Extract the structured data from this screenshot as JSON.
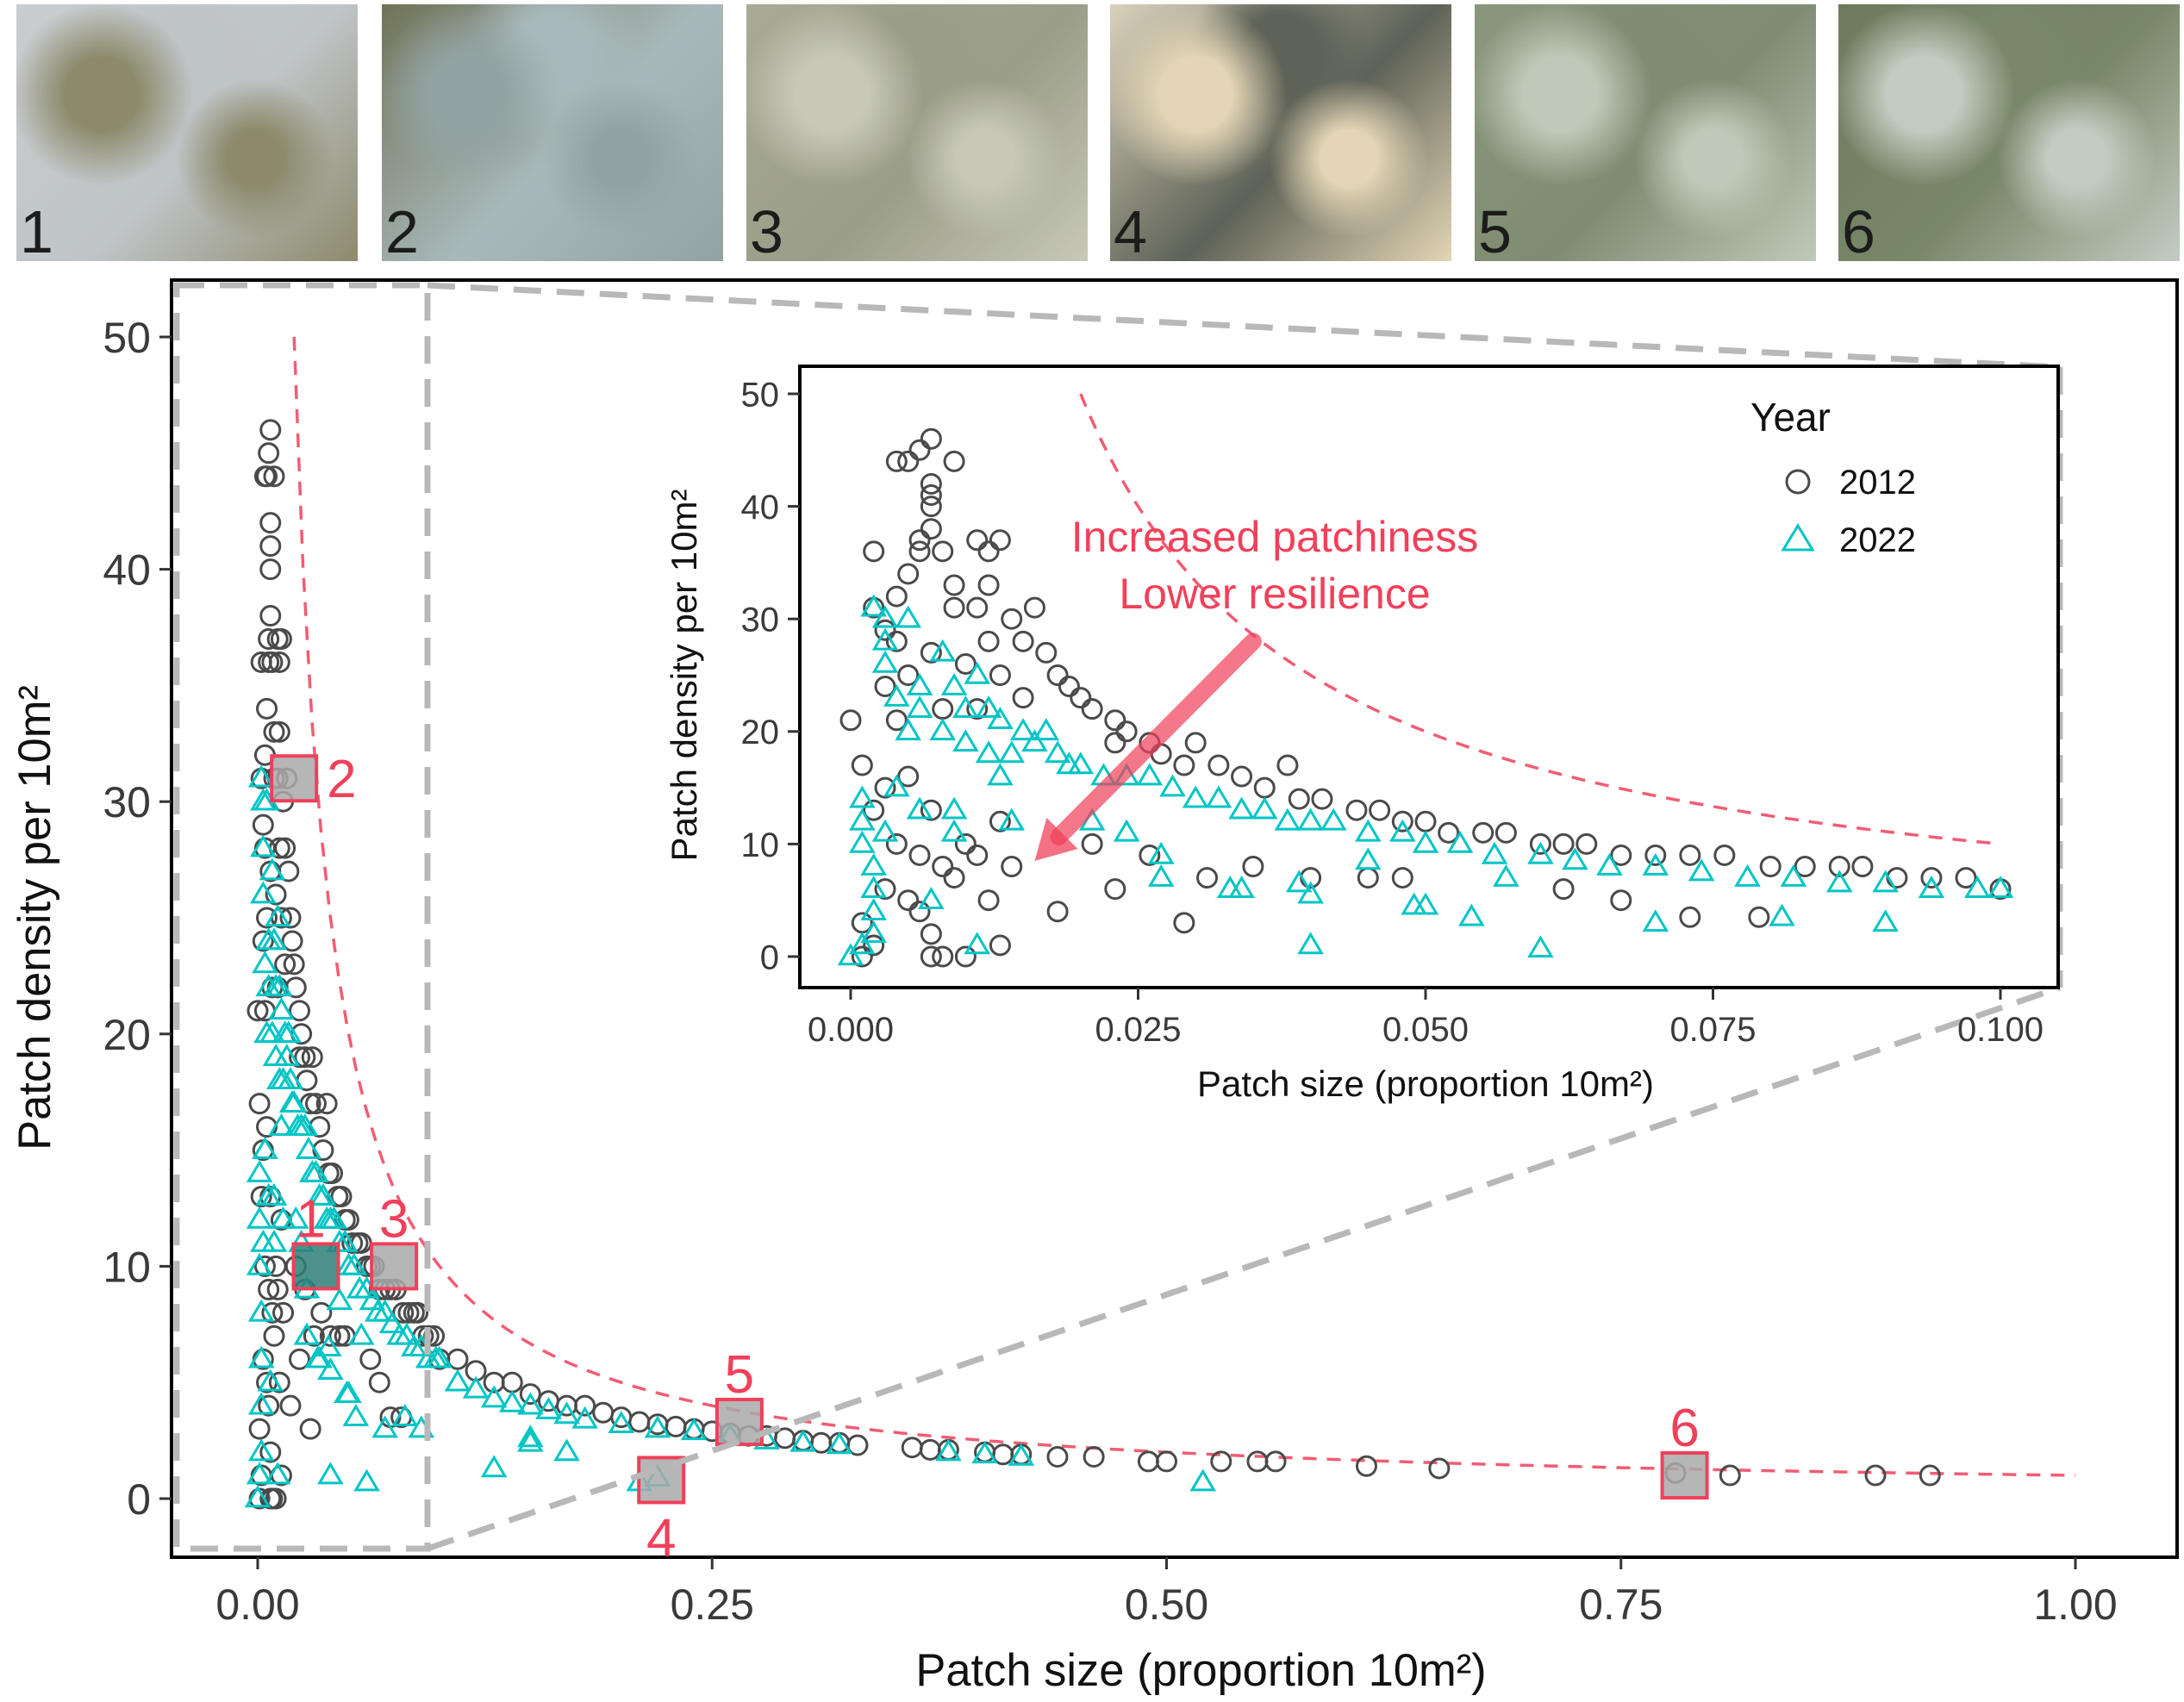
{
  "photos": [
    {
      "label": "1",
      "colors": [
        "#c9cdd0",
        "#8d8a6c",
        "#bfc4c6"
      ]
    },
    {
      "label": "2",
      "colors": [
        "#6f7357",
        "#93a3a3",
        "#a9b9bb"
      ]
    },
    {
      "label": "3",
      "colors": [
        "#a9ab94",
        "#c7c8b8",
        "#9a9d87"
      ]
    },
    {
      "label": "4",
      "colors": [
        "#d9d2bc",
        "#e3d5b5",
        "#5e6257"
      ]
    },
    {
      "label": "5",
      "colors": [
        "#89977c",
        "#bfc9b9",
        "#7f8c72"
      ]
    },
    {
      "label": "6",
      "colors": [
        "#6d7b5c",
        "#c3ccc2",
        "#79886a"
      ]
    }
  ],
  "colors": {
    "c2012": "#4a4a4a",
    "c2022": "#00c5c5",
    "accent": "#f0405a",
    "zoom_box": "#b8b8b8",
    "square_fill": "#a9a9a9",
    "square1_fill": "#2e7e78"
  },
  "chart_data": [
    {
      "id": "main",
      "type": "scatter",
      "xlabel": "Patch size (proportion 10m²)",
      "ylabel": "Patch density per 10m²",
      "xlim": [
        0,
        1.0
      ],
      "ylim": [
        0,
        50
      ],
      "xticks": [
        "0.00",
        "0.25",
        "0.50",
        "0.75",
        "1.00"
      ],
      "xtick_values": [
        0,
        0.25,
        0.5,
        0.75,
        1.0
      ],
      "yticks": [
        "0",
        "10",
        "20",
        "30",
        "40",
        "50"
      ],
      "ytick_values": [
        0,
        10,
        20,
        30,
        40,
        50
      ],
      "reference_curve": {
        "formula": "y = 1/x",
        "x_range": [
          0.02,
          1.0
        ],
        "style": "dashed"
      },
      "zoom_region": {
        "x": [
          0,
          0.1
        ],
        "y": [
          0,
          50
        ]
      },
      "highlighted_samples": [
        {
          "label": "1",
          "x": 0.032,
          "y": 10,
          "label_pos": "above"
        },
        {
          "label": "2",
          "x": 0.02,
          "y": 31,
          "label_pos": "right"
        },
        {
          "label": "3",
          "x": 0.075,
          "y": 10,
          "label_pos": "above"
        },
        {
          "label": "4",
          "x": 0.222,
          "y": 0.8,
          "label_pos": "below"
        },
        {
          "label": "5",
          "x": 0.265,
          "y": 3.3,
          "label_pos": "above"
        },
        {
          "label": "6",
          "x": 0.785,
          "y": 1.0,
          "label_pos": "above"
        }
      ]
    },
    {
      "id": "inset",
      "type": "scatter",
      "xlabel": "Patch size (proportion 10m²)",
      "ylabel": "Patch density per 10m²",
      "xlim": [
        0,
        0.1
      ],
      "ylim": [
        0,
        50
      ],
      "xticks": [
        "0.000",
        "0.025",
        "0.050",
        "0.075",
        "0.100"
      ],
      "xtick_values": [
        0,
        0.025,
        0.05,
        0.075,
        0.1
      ],
      "yticks": [
        "0",
        "10",
        "20",
        "30",
        "40",
        "50"
      ],
      "ytick_values": [
        0,
        10,
        20,
        30,
        40,
        50
      ],
      "reference_curve": {
        "formula": "y = 1/x",
        "x_range": [
          0.02,
          0.1
        ],
        "style": "dashed"
      },
      "legend": {
        "title": "Year",
        "position": "top-right",
        "entries": [
          {
            "label": "2012",
            "marker": "circle"
          },
          {
            "label": "2022",
            "marker": "triangle"
          }
        ]
      },
      "annotation": {
        "lines": [
          "Increased patchiness",
          "Lower resilience"
        ],
        "arrow_from": [
          0.035,
          28
        ],
        "arrow_to": [
          0.016,
          8.5
        ]
      }
    }
  ],
  "series": [
    {
      "name": "2012",
      "marker": "circle",
      "points": [
        [
          0.007,
          46
        ],
        [
          0.006,
          45
        ],
        [
          0.005,
          44
        ],
        [
          0.009,
          44
        ],
        [
          0.004,
          44
        ],
        [
          0.007,
          42
        ],
        [
          0.007,
          41
        ],
        [
          0.007,
          40
        ],
        [
          0.007,
          38
        ],
        [
          0.002,
          36
        ],
        [
          0.006,
          37
        ],
        [
          0.006,
          36
        ],
        [
          0.011,
          37
        ],
        [
          0.012,
          36
        ],
        [
          0.013,
          37
        ],
        [
          0.008,
          36
        ],
        [
          0.005,
          34
        ],
        [
          0.009,
          33
        ],
        [
          0.004,
          32
        ],
        [
          0.012,
          33
        ],
        [
          0.009,
          31
        ],
        [
          0.002,
          31
        ],
        [
          0.003,
          29
        ],
        [
          0.014,
          30
        ],
        [
          0.011,
          31
        ],
        [
          0.016,
          31
        ],
        [
          0.004,
          28
        ],
        [
          0.007,
          27
        ],
        [
          0.012,
          28
        ],
        [
          0.015,
          28
        ],
        [
          0.017,
          27
        ],
        [
          0.003,
          24
        ],
        [
          0.005,
          25
        ],
        [
          0.01,
          26
        ],
        [
          0.013,
          25
        ],
        [
          0.018,
          25
        ],
        [
          0.019,
          24
        ],
        [
          0.02,
          23
        ],
        [
          0.021,
          22
        ],
        [
          0.0,
          21
        ],
        [
          0.004,
          21
        ],
        [
          0.008,
          22
        ],
        [
          0.011,
          22
        ],
        [
          0.015,
          23
        ],
        [
          0.023,
          21
        ],
        [
          0.024,
          20
        ],
        [
          0.023,
          19
        ],
        [
          0.026,
          19
        ],
        [
          0.03,
          19
        ],
        [
          0.027,
          18
        ],
        [
          0.029,
          17
        ],
        [
          0.032,
          17
        ],
        [
          0.034,
          16
        ],
        [
          0.038,
          17
        ],
        [
          0.036,
          15
        ],
        [
          0.039,
          14
        ],
        [
          0.041,
          14
        ],
        [
          0.044,
          13
        ],
        [
          0.046,
          13
        ],
        [
          0.048,
          12
        ],
        [
          0.05,
          12
        ],
        [
          0.052,
          11
        ],
        [
          0.055,
          11
        ],
        [
          0.057,
          11
        ],
        [
          0.06,
          10
        ],
        [
          0.062,
          10
        ],
        [
          0.064,
          10
        ],
        [
          0.067,
          9
        ],
        [
          0.07,
          9
        ],
        [
          0.073,
          9
        ],
        [
          0.076,
          9
        ],
        [
          0.08,
          8
        ],
        [
          0.083,
          8
        ],
        [
          0.086,
          8
        ],
        [
          0.088,
          8
        ],
        [
          0.091,
          7
        ],
        [
          0.094,
          7
        ],
        [
          0.097,
          7
        ],
        [
          0.1,
          6
        ],
        [
          0.001,
          17
        ],
        [
          0.003,
          15
        ],
        [
          0.005,
          16
        ],
        [
          0.007,
          13
        ],
        [
          0.002,
          13
        ],
        [
          0.004,
          10
        ],
        [
          0.006,
          9
        ],
        [
          0.008,
          8
        ],
        [
          0.01,
          10
        ],
        [
          0.012,
          5
        ],
        [
          0.013,
          12
        ],
        [
          0.014,
          8
        ],
        [
          0.003,
          6
        ],
        [
          0.005,
          5
        ],
        [
          0.006,
          4
        ],
        [
          0.007,
          2
        ],
        [
          0.007,
          0
        ],
        [
          0.008,
          0
        ],
        [
          0.01,
          0
        ],
        [
          0.013,
          1
        ],
        [
          0.009,
          7
        ],
        [
          0.011,
          9
        ],
        [
          0.018,
          4
        ],
        [
          0.021,
          10
        ],
        [
          0.023,
          6
        ],
        [
          0.026,
          9
        ],
        [
          0.029,
          3
        ],
        [
          0.031,
          7
        ],
        [
          0.035,
          8
        ],
        [
          0.04,
          7
        ],
        [
          0.045,
          7
        ],
        [
          0.048,
          7
        ],
        [
          0.062,
          6
        ],
        [
          0.067,
          5
        ],
        [
          0.073,
          3.5
        ],
        [
          0.079,
          3.5
        ],
        [
          0.001,
          0
        ],
        [
          0.002,
          1
        ],
        [
          0.001,
          3
        ],
        [
          0.11,
          6
        ],
        [
          0.12,
          5.5
        ],
        [
          0.13,
          5
        ],
        [
          0.14,
          5
        ],
        [
          0.15,
          4.5
        ],
        [
          0.16,
          4.2
        ],
        [
          0.17,
          4
        ],
        [
          0.18,
          4
        ],
        [
          0.19,
          3.7
        ],
        [
          0.2,
          3.5
        ],
        [
          0.21,
          3.3
        ],
        [
          0.22,
          3.2
        ],
        [
          0.23,
          3.1
        ],
        [
          0.24,
          3
        ],
        [
          0.25,
          2.9
        ],
        [
          0.26,
          2.8
        ],
        [
          0.27,
          2.7
        ],
        [
          0.28,
          2.7
        ],
        [
          0.29,
          2.6
        ],
        [
          0.3,
          2.5
        ],
        [
          0.31,
          2.4
        ],
        [
          0.32,
          2.4
        ],
        [
          0.33,
          2.3
        ],
        [
          0.36,
          2.2
        ],
        [
          0.37,
          2.1
        ],
        [
          0.38,
          2.1
        ],
        [
          0.4,
          2
        ],
        [
          0.41,
          1.9
        ],
        [
          0.42,
          1.9
        ],
        [
          0.44,
          1.8
        ],
        [
          0.46,
          1.8
        ],
        [
          0.49,
          1.6
        ],
        [
          0.5,
          1.6
        ],
        [
          0.53,
          1.6
        ],
        [
          0.55,
          1.6
        ],
        [
          0.56,
          1.6
        ],
        [
          0.61,
          1.4
        ],
        [
          0.65,
          1.3
        ],
        [
          0.78,
          1.1
        ],
        [
          0.81,
          1.0
        ],
        [
          0.89,
          1.0
        ],
        [
          0.92,
          1.0
        ]
      ]
    },
    {
      "name": "2022",
      "marker": "triangle",
      "points": [
        [
          0.002,
          31
        ],
        [
          0.003,
          30
        ],
        [
          0.005,
          30
        ],
        [
          0.003,
          28
        ],
        [
          0.003,
          26
        ],
        [
          0.008,
          27
        ],
        [
          0.006,
          24
        ],
        [
          0.011,
          25
        ],
        [
          0.009,
          24
        ],
        [
          0.004,
          23
        ],
        [
          0.006,
          22
        ],
        [
          0.01,
          22
        ],
        [
          0.012,
          22
        ],
        [
          0.005,
          20
        ],
        [
          0.008,
          20
        ],
        [
          0.013,
          21
        ],
        [
          0.015,
          20
        ],
        [
          0.017,
          20
        ],
        [
          0.01,
          19
        ],
        [
          0.012,
          18
        ],
        [
          0.014,
          18
        ],
        [
          0.016,
          19
        ],
        [
          0.018,
          18
        ],
        [
          0.019,
          17
        ],
        [
          0.02,
          17
        ],
        [
          0.022,
          16
        ],
        [
          0.024,
          16
        ],
        [
          0.026,
          16
        ],
        [
          0.028,
          15
        ],
        [
          0.03,
          14
        ],
        [
          0.032,
          14
        ],
        [
          0.034,
          13
        ],
        [
          0.036,
          13
        ],
        [
          0.038,
          12
        ],
        [
          0.04,
          12
        ],
        [
          0.042,
          12
        ],
        [
          0.045,
          11
        ],
        [
          0.048,
          11
        ],
        [
          0.05,
          10
        ],
        [
          0.053,
          10
        ],
        [
          0.056,
          9
        ],
        [
          0.06,
          9
        ],
        [
          0.063,
          8.5
        ],
        [
          0.066,
          8
        ],
        [
          0.07,
          8
        ],
        [
          0.074,
          7.5
        ],
        [
          0.078,
          7
        ],
        [
          0.082,
          7
        ],
        [
          0.086,
          6.5
        ],
        [
          0.09,
          6.5
        ],
        [
          0.094,
          6
        ],
        [
          0.098,
          6
        ],
        [
          0.1,
          6
        ],
        [
          0.001,
          14
        ],
        [
          0.001,
          12
        ],
        [
          0.001,
          10
        ],
        [
          0.002,
          8
        ],
        [
          0.002,
          6
        ],
        [
          0.002,
          4
        ],
        [
          0.002,
          2
        ],
        [
          0.001,
          1
        ],
        [
          0.0,
          0
        ],
        [
          0.003,
          11
        ],
        [
          0.004,
          15
        ],
        [
          0.006,
          13
        ],
        [
          0.009,
          11
        ],
        [
          0.009,
          13
        ],
        [
          0.013,
          16
        ],
        [
          0.014,
          12
        ],
        [
          0.011,
          1
        ],
        [
          0.007,
          5
        ],
        [
          0.021,
          12
        ],
        [
          0.024,
          11
        ],
        [
          0.027,
          7
        ],
        [
          0.027,
          9
        ],
        [
          0.033,
          6
        ],
        [
          0.034,
          6
        ],
        [
          0.039,
          6.5
        ],
        [
          0.04,
          1
        ],
        [
          0.049,
          4.5
        ],
        [
          0.054,
          3.5
        ],
        [
          0.081,
          3.5
        ],
        [
          0.045,
          8.5
        ],
        [
          0.057,
          7
        ],
        [
          0.11,
          5
        ],
        [
          0.12,
          4.7
        ],
        [
          0.13,
          4.3
        ],
        [
          0.14,
          4.1
        ],
        [
          0.15,
          4
        ],
        [
          0.16,
          3.8
        ],
        [
          0.17,
          3.6
        ],
        [
          0.18,
          3.4
        ],
        [
          0.2,
          3.2
        ],
        [
          0.22,
          3
        ],
        [
          0.24,
          2.9
        ],
        [
          0.26,
          2.7
        ],
        [
          0.28,
          2.5
        ],
        [
          0.3,
          2.4
        ],
        [
          0.32,
          2.3
        ],
        [
          0.38,
          2
        ],
        [
          0.4,
          1.9
        ],
        [
          0.42,
          1.8
        ],
        [
          0.13,
          1.3
        ],
        [
          0.15,
          2.4
        ],
        [
          0.15,
          2.6
        ],
        [
          0.17,
          2
        ],
        [
          0.21,
          0.7
        ],
        [
          0.22,
          0.9
        ],
        [
          0.52,
          0.7
        ],
        [
          0.06,
          0.7
        ],
        [
          0.04,
          5.5
        ],
        [
          0.05,
          4.5
        ],
        [
          0.09,
          3
        ],
        [
          0.07,
          3
        ]
      ]
    }
  ]
}
